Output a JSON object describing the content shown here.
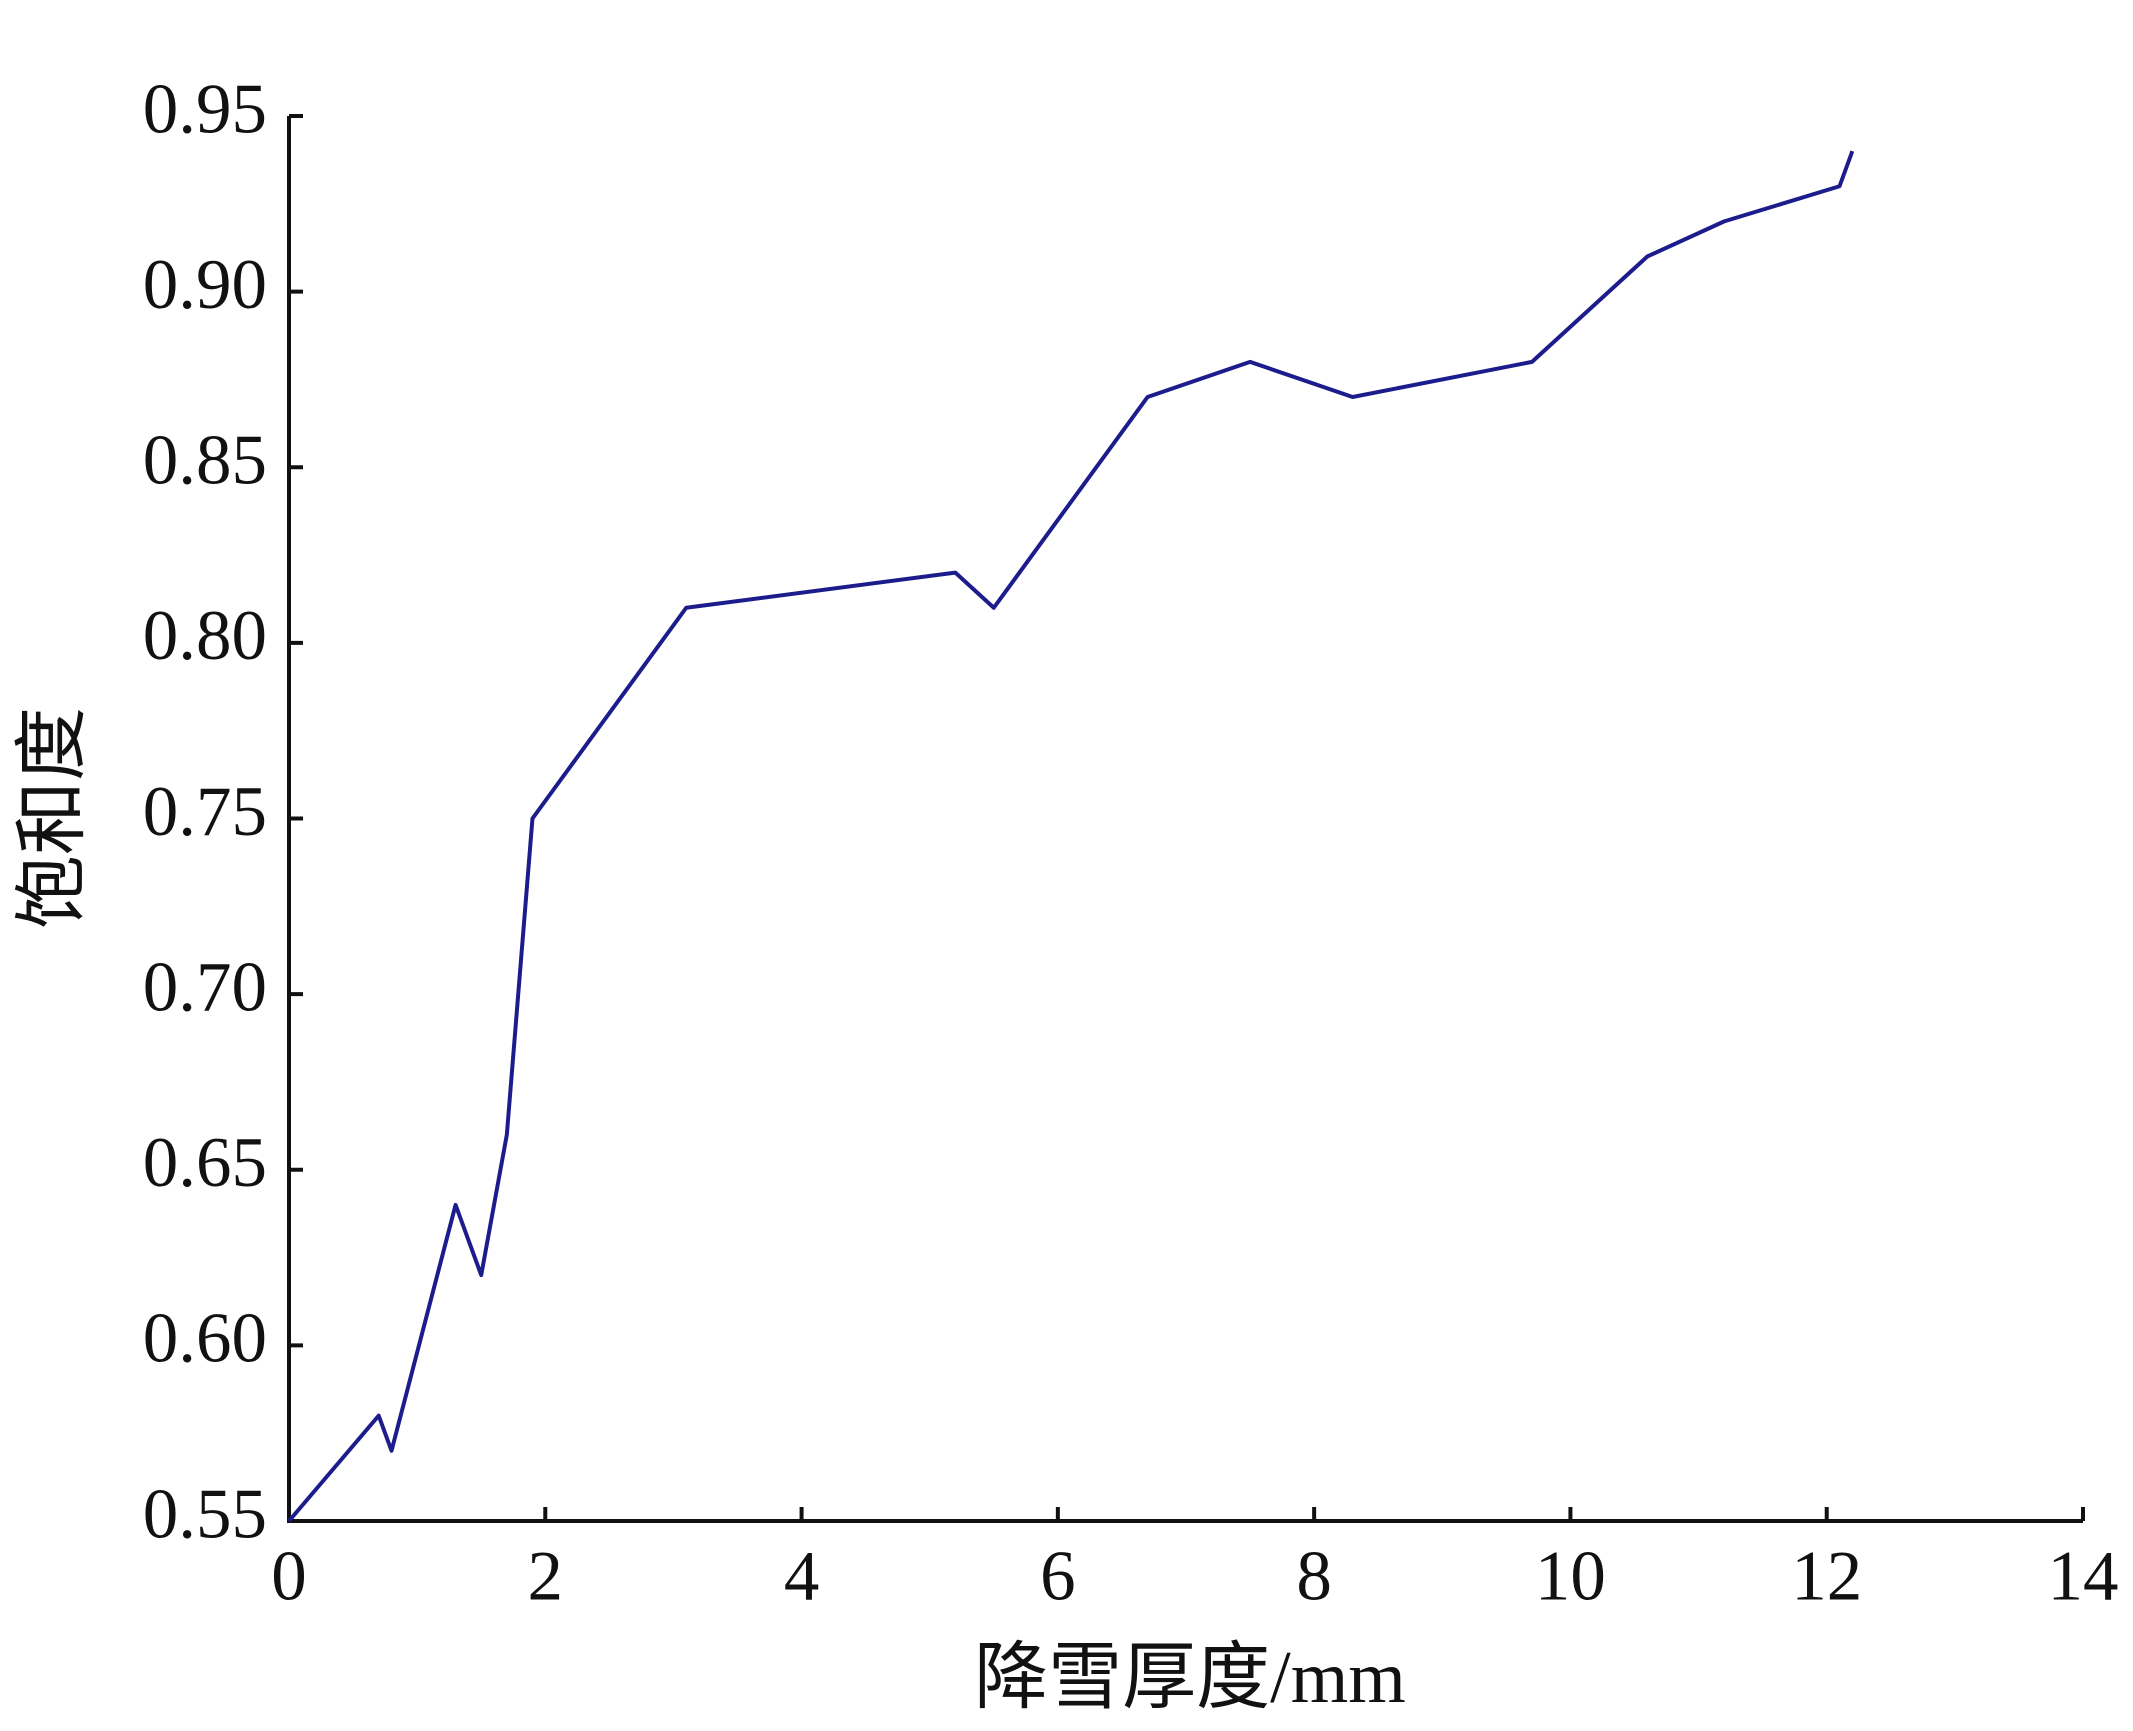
{
  "chart_data": {
    "type": "line",
    "x_label": "降雪厚度/mm",
    "y_label": "饱和度",
    "x": [
      0,
      0.7,
      0.8,
      1.3,
      1.5,
      1.7,
      1.9,
      3.1,
      5.2,
      5.5,
      6.7,
      7.5,
      8.3,
      9.7,
      10.6,
      11.2,
      12.1,
      12.2
    ],
    "series": [
      {
        "color": "#1c1c8c",
        "values": [
          0.55,
          0.58,
          0.57,
          0.64,
          0.62,
          0.66,
          0.75,
          0.81,
          0.82,
          0.81,
          0.87,
          0.88,
          0.87,
          0.88,
          0.91,
          0.92,
          0.93,
          0.94
        ]
      }
    ],
    "xlim": [
      0,
      14
    ],
    "xticks": [
      0,
      2,
      4,
      6,
      8,
      10,
      12,
      14
    ],
    "ylim": [
      0.55,
      0.95
    ],
    "yticks": [
      0.55,
      {
        "value": 0.6,
        "label": "0.60"
      },
      0.65,
      {
        "value": 0.7,
        "label": "0.70"
      },
      0.75,
      {
        "value": 0.8,
        "label": "0.80"
      },
      0.85,
      {
        "value": 0.9,
        "label": "0.90"
      },
      0.95
    ],
    "grid": false
  }
}
